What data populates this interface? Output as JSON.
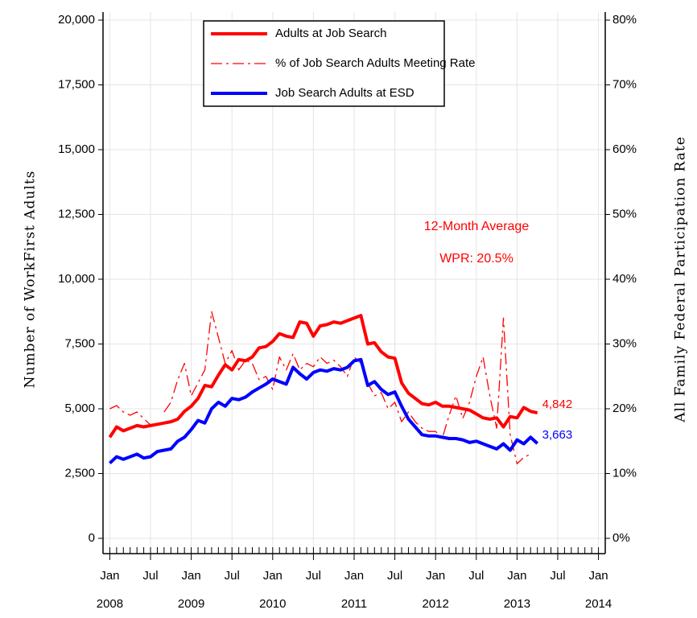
{
  "chart_data": {
    "type": "line",
    "x": [
      "2008-01",
      "2008-02",
      "2008-03",
      "2008-04",
      "2008-05",
      "2008-06",
      "2008-07",
      "2008-08",
      "2008-09",
      "2008-10",
      "2008-11",
      "2008-12",
      "2009-01",
      "2009-02",
      "2009-03",
      "2009-04",
      "2009-05",
      "2009-06",
      "2009-07",
      "2009-08",
      "2009-09",
      "2009-10",
      "2009-11",
      "2009-12",
      "2010-01",
      "2010-02",
      "2010-03",
      "2010-04",
      "2010-05",
      "2010-06",
      "2010-07",
      "2010-08",
      "2010-09",
      "2010-10",
      "2010-11",
      "2010-12",
      "2011-01",
      "2011-02",
      "2011-03",
      "2011-04",
      "2011-05",
      "2011-06",
      "2011-07",
      "2011-08",
      "2011-09",
      "2011-10",
      "2011-11",
      "2011-12",
      "2012-01",
      "2012-02",
      "2012-03",
      "2012-04",
      "2012-05",
      "2012-06",
      "2012-07",
      "2012-08",
      "2012-09",
      "2012-10",
      "2012-11",
      "2012-12",
      "2013-01",
      "2013-02",
      "2013-03",
      "2013-04"
    ],
    "series": [
      {
        "name": "Adults at Job Search",
        "color": "#ff0000",
        "style": "solid",
        "axis": "y",
        "values": [
          3900,
          4300,
          4150,
          4250,
          4350,
          4300,
          4350,
          4400,
          4450,
          4500,
          4600,
          4900,
          5100,
          5400,
          5900,
          5850,
          6300,
          6700,
          6500,
          6900,
          6850,
          7000,
          7350,
          7400,
          7600,
          7900,
          7800,
          7750,
          8350,
          8300,
          7800,
          8200,
          8250,
          8350,
          8300,
          8400,
          8500,
          8600,
          7500,
          7550,
          7200,
          7000,
          6950,
          6000,
          5600,
          5400,
          5200,
          5150,
          5250,
          5100,
          5100,
          5050,
          5000,
          4950,
          4800,
          4650,
          4600,
          4650,
          4300,
          4700,
          4650,
          5050,
          4900,
          4842
        ],
        "value_labels": [
          null,
          null,
          null,
          null,
          null,
          null,
          null,
          null,
          null,
          null,
          null,
          null,
          null,
          null,
          null,
          null,
          null,
          null,
          null,
          null,
          null,
          null,
          null,
          null,
          null,
          null,
          null,
          null,
          null,
          null,
          null,
          null,
          null,
          null,
          null,
          null,
          null,
          null,
          null,
          null,
          null,
          null,
          null,
          null,
          null,
          null,
          null,
          null,
          null,
          null,
          null,
          null,
          null,
          null,
          null,
          null,
          null,
          null,
          null,
          null,
          null,
          null,
          null,
          "4,842"
        ]
      },
      {
        "name": "% of Job Search Adults Meeting Rate",
        "color": "#ff0000",
        "style": "dashed",
        "axis": "y2",
        "values": [
          20.0,
          20.5,
          19.5,
          19.0,
          19.5,
          18.5,
          17.5,
          null,
          19.5,
          21.0,
          24.5,
          27.0,
          22.0,
          24.0,
          26.0,
          35.0,
          31.0,
          27.0,
          29.0,
          26.0,
          27.5,
          27.0,
          24.5,
          25.0,
          23.0,
          28.0,
          26.0,
          28.5,
          26.0,
          27.0,
          26.5,
          28.0,
          27.0,
          27.5,
          26.5,
          25.0,
          28.0,
          27.0,
          24.0,
          22.0,
          22.5,
          20.0,
          21.0,
          18.0,
          19.5,
          18.0,
          17.0,
          16.5,
          16.5,
          15.5,
          19.0,
          22.0,
          18.5,
          21.0,
          25.0,
          28.0,
          22.0,
          17.0,
          34.0,
          16.0,
          11.5,
          12.5,
          13.0,
          null
        ]
      },
      {
        "name": "Job Search Adults at ESD",
        "color": "#0000ff",
        "style": "solid",
        "axis": "y",
        "values": [
          2900,
          3150,
          3050,
          3150,
          3250,
          3100,
          3150,
          3350,
          3400,
          3450,
          3750,
          3900,
          4200,
          4550,
          4450,
          5000,
          5250,
          5100,
          5400,
          5350,
          5450,
          5650,
          5800,
          5950,
          6150,
          6050,
          5950,
          6600,
          6350,
          6150,
          6400,
          6500,
          6450,
          6550,
          6500,
          6600,
          6850,
          6900,
          5900,
          6050,
          5750,
          5550,
          5650,
          5100,
          4600,
          4300,
          4000,
          3950,
          3950,
          3900,
          3850,
          3850,
          3800,
          3700,
          3750,
          3650,
          3550,
          3450,
          3650,
          3400,
          3800,
          3650,
          3900,
          3663
        ],
        "value_labels": [
          null,
          null,
          null,
          null,
          null,
          null,
          null,
          null,
          null,
          null,
          null,
          null,
          null,
          null,
          null,
          null,
          null,
          null,
          null,
          null,
          null,
          null,
          null,
          null,
          null,
          null,
          null,
          null,
          null,
          null,
          null,
          null,
          null,
          null,
          null,
          null,
          null,
          null,
          null,
          null,
          null,
          null,
          null,
          null,
          null,
          null,
          null,
          null,
          null,
          null,
          null,
          null,
          null,
          null,
          null,
          null,
          null,
          null,
          null,
          null,
          null,
          null,
          null,
          "3,663"
        ]
      }
    ],
    "ylabel": "Number of WorkFirst Adults",
    "y2label": "All Family Federal Participation Rate",
    "ylim": [
      0,
      20000
    ],
    "yticks": [
      0,
      {
        "value": 2500,
        "label": "2,500"
      },
      {
        "value": 5000,
        "label": "5,000"
      },
      {
        "value": 7500,
        "label": "7,500"
      },
      {
        "value": 10000,
        "label": "10,000"
      },
      {
        "value": 12500,
        "label": "12,500"
      },
      {
        "value": 15000,
        "label": "15,000"
      },
      {
        "value": 17500,
        "label": "17,500"
      },
      {
        "value": 20000,
        "label": "20,000"
      }
    ],
    "y2lim": [
      0,
      80
    ],
    "y2ticks": [
      {
        "value": 0,
        "label": "0%"
      },
      {
        "value": 10,
        "label": "10%"
      },
      {
        "value": 20,
        "label": "20%"
      },
      {
        "value": 30,
        "label": "30%"
      },
      {
        "value": 40,
        "label": "40%"
      },
      {
        "value": 50,
        "label": "50%"
      },
      {
        "value": 60,
        "label": "60%"
      },
      {
        "value": 70,
        "label": "70%"
      },
      {
        "value": 80,
        "label": "80%"
      }
    ],
    "xlim": [
      "2007-12",
      "2014-02"
    ],
    "xticks": [
      {
        "value": "2008-01",
        "label": "Jan"
      },
      {
        "value": "2008-07",
        "label": "Jul"
      },
      {
        "value": "2009-01",
        "label": "Jan"
      },
      {
        "value": "2009-07",
        "label": "Jul"
      },
      {
        "value": "2010-01",
        "label": "Jan"
      },
      {
        "value": "2010-07",
        "label": "Jul"
      },
      {
        "value": "2011-01",
        "label": "Jan"
      },
      {
        "value": "2011-07",
        "label": "Jul"
      },
      {
        "value": "2012-01",
        "label": "Jan"
      },
      {
        "value": "2012-07",
        "label": "Jul"
      },
      {
        "value": "2013-01",
        "label": "Jan"
      },
      {
        "value": "2013-07",
        "label": "Jul"
      },
      {
        "value": "2014-01",
        "label": "Jan"
      }
    ],
    "year_ticks": [
      {
        "value": "2008-01",
        "label": "2008"
      },
      {
        "value": "2009-01",
        "label": "2009"
      },
      {
        "value": "2010-01",
        "label": "2010"
      },
      {
        "value": "2011-01",
        "label": "2011"
      },
      {
        "value": "2012-01",
        "label": "2012"
      },
      {
        "value": "2013-01",
        "label": "2013"
      },
      {
        "value": "2014-01",
        "label": "2014"
      }
    ],
    "minor_xtick_step_months": 1,
    "annotations": [
      "12-Month Average",
      "WPR: 20.5%"
    ],
    "annotation_color": "#ff0000",
    "grid": true,
    "legend": "top"
  }
}
